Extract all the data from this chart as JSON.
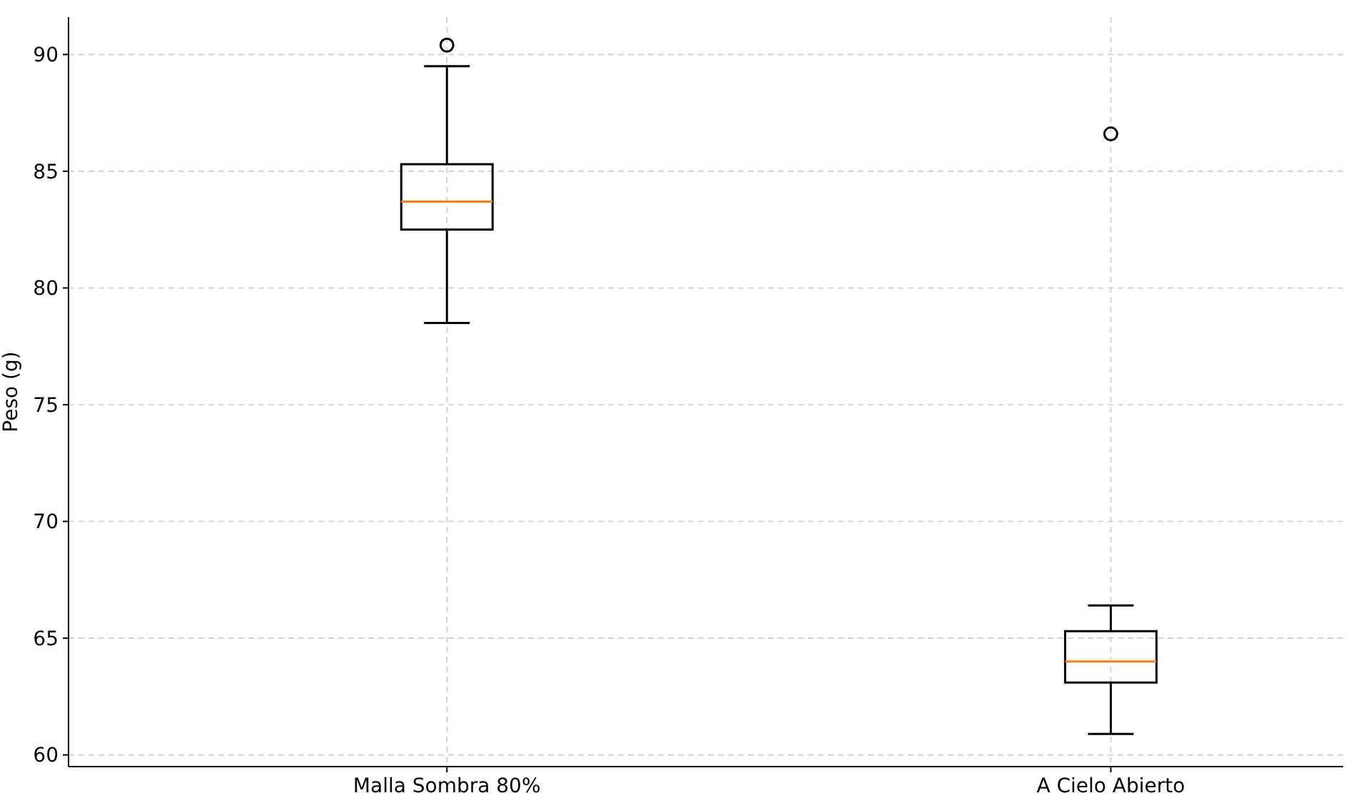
{
  "chart_data": {
    "type": "box",
    "ylabel": "Peso (g)",
    "categories": [
      "Malla Sombra 80%",
      "A Cielo Abierto"
    ],
    "boxes": [
      {
        "low": 78.5,
        "q1": 82.5,
        "median": 83.7,
        "q3": 85.3,
        "high": 89.5,
        "outliers": [
          90.4
        ]
      },
      {
        "low": 60.9,
        "q1": 63.1,
        "median": 64.0,
        "q3": 65.3,
        "high": 66.4,
        "outliers": [
          86.6
        ]
      }
    ],
    "color": "#000000",
    "ylim": [
      59.5,
      91.6
    ],
    "yticks": [
      60,
      65,
      70,
      75,
      80,
      85,
      90
    ],
    "grid": true
  }
}
